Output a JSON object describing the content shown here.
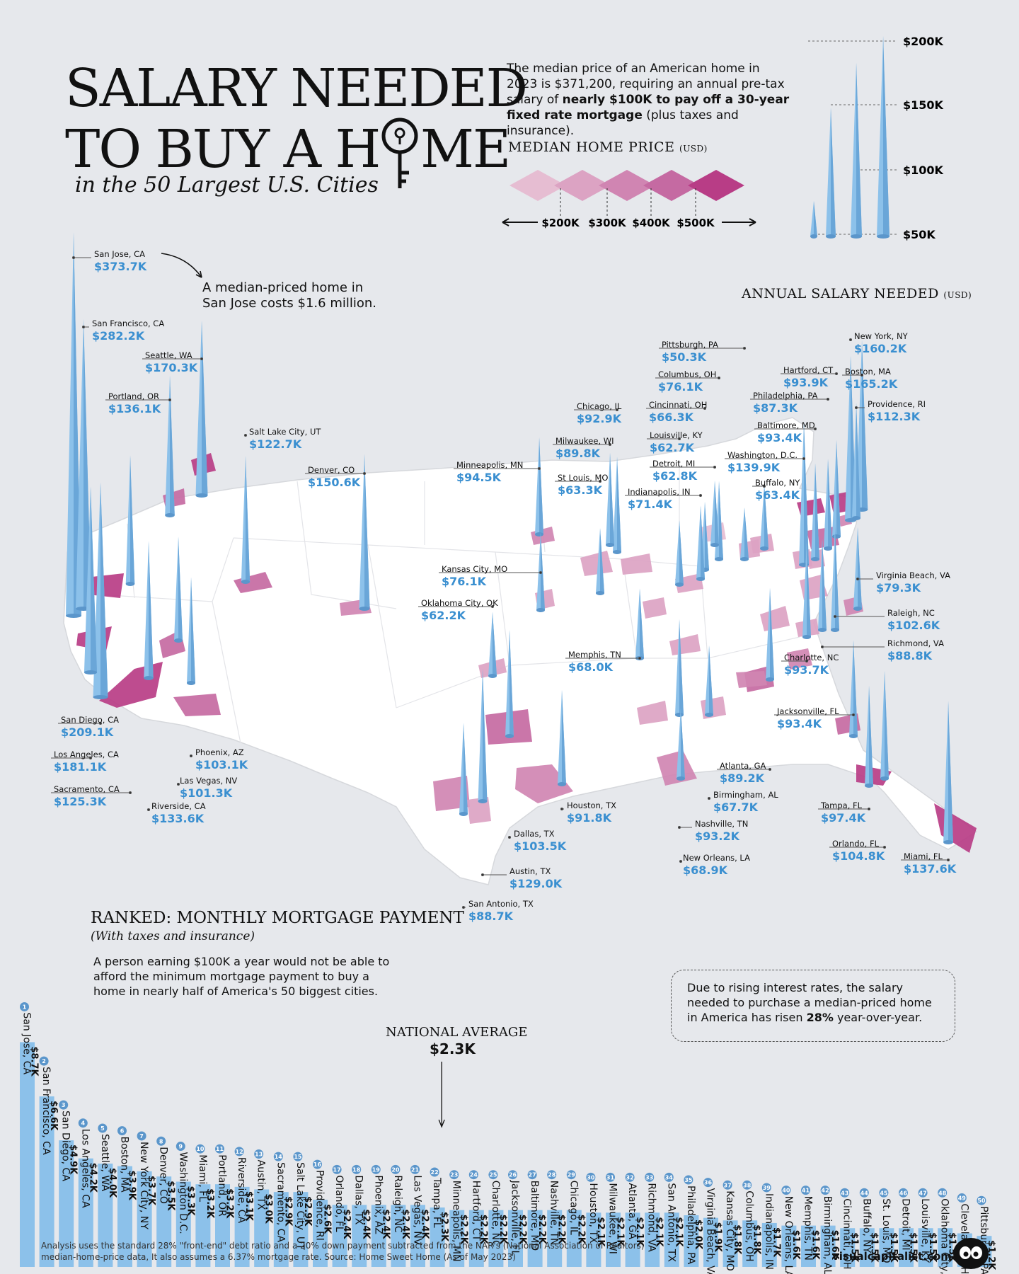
{
  "title": {
    "line1": "SALARY NEEDED",
    "line2": "TO BUY A H",
    "line2_end": "ME",
    "subtitle": "in the 50 Largest U.S. Cities"
  },
  "intro": {
    "part1": "The median price of an American home in 2023 is $371,200, requiring an annual pre-tax salary of ",
    "bold": "nearly $100K to pay off a 30-year fixed rate mortgage",
    "part2": " (plus taxes and insurance)."
  },
  "legend": {
    "price_title": "MEDIAN HOME PRICE",
    "price_unit": "(USD)",
    "price_ticks": [
      "$200K",
      "$300K",
      "$400K",
      "$500K"
    ],
    "price_colors": [
      "#e6bdd2",
      "#dca3c3",
      "#d085b2",
      "#c56aa2",
      "#b83d86"
    ],
    "salary_title": "ANNUAL SALARY NEEDED",
    "salary_unit": "(USD)",
    "salary_ticks": [
      "$200K",
      "$150K",
      "$100K",
      "$50K"
    ]
  },
  "annotation_sanjose": "A median-priced home in San Jose costs $1.6 million.",
  "map_cities": [
    {
      "name": "San Jose, CA",
      "value": "$373.7K"
    },
    {
      "name": "San Francisco, CA",
      "value": "$282.2K"
    },
    {
      "name": "Seattle, WA",
      "value": "$170.3K"
    },
    {
      "name": "Portland, OR",
      "value": "$136.1K"
    },
    {
      "name": "Salt Lake City, UT",
      "value": "$122.7K"
    },
    {
      "name": "Denver, CO",
      "value": "$150.6K"
    },
    {
      "name": "Minneapolis, MN",
      "value": "$94.5K"
    },
    {
      "name": "Chicago, IL",
      "value": "$92.9K"
    },
    {
      "name": "Milwaukee, WI",
      "value": "$89.8K"
    },
    {
      "name": "St Louis, MO",
      "value": "$63.3K"
    },
    {
      "name": "Pittsburgh, PA",
      "value": "$50.3K"
    },
    {
      "name": "Columbus, OH",
      "value": "$76.1K"
    },
    {
      "name": "Cincinnati, OH",
      "value": "$66.3K"
    },
    {
      "name": "Louisville, KY",
      "value": "$62.7K"
    },
    {
      "name": "Detroit, MI",
      "value": "$62.8K"
    },
    {
      "name": "Indianapolis, IN",
      "value": "$71.4K"
    },
    {
      "name": "New York, NY",
      "value": "$160.2K"
    },
    {
      "name": "Hartford, CT",
      "value": "$93.9K"
    },
    {
      "name": "Boston, MA",
      "value": "$165.2K"
    },
    {
      "name": "Philadelphia, PA",
      "value": "$87.3K"
    },
    {
      "name": "Providence, RI",
      "value": "$112.3K"
    },
    {
      "name": "Baltimore, MD",
      "value": "$93.4K"
    },
    {
      "name": "Washington, D.C.",
      "value": "$139.9K"
    },
    {
      "name": "Buffalo, NY",
      "value": "$63.4K"
    },
    {
      "name": "Kansas City, MO",
      "value": "$76.1K"
    },
    {
      "name": "Oklahoma City, OK",
      "value": "$62.2K"
    },
    {
      "name": "Memphis, TN",
      "value": "$68.0K"
    },
    {
      "name": "Virginia Beach, VA",
      "value": "$79.3K"
    },
    {
      "name": "Raleigh, NC",
      "value": "$102.6K"
    },
    {
      "name": "Richmond, VA",
      "value": "$88.8K"
    },
    {
      "name": "Charlotte, NC",
      "value": "$93.7K"
    },
    {
      "name": "Jacksonville, FL",
      "value": "$93.4K"
    },
    {
      "name": "Atlanta, GA",
      "value": "$89.2K"
    },
    {
      "name": "Birmingham, AL",
      "value": "$67.7K"
    },
    {
      "name": "Nashville, TN",
      "value": "$93.2K"
    },
    {
      "name": "New Orleans, LA",
      "value": "$68.9K"
    },
    {
      "name": "Tampa, FL",
      "value": "$97.4K"
    },
    {
      "name": "Orlando, FL",
      "value": "$104.8K"
    },
    {
      "name": "Miami, FL",
      "value": "$137.6K"
    },
    {
      "name": "Houston, TX",
      "value": "$91.8K"
    },
    {
      "name": "Dallas, TX",
      "value": "$103.5K"
    },
    {
      "name": "Austin, TX",
      "value": "$129.0K"
    },
    {
      "name": "San Antonio, TX",
      "value": "$88.7K"
    },
    {
      "name": "San Diego, CA",
      "value": "$209.1K"
    },
    {
      "name": "Los Angeles, CA",
      "value": "$181.1K"
    },
    {
      "name": "Sacramento, CA",
      "value": "$125.3K"
    },
    {
      "name": "Riverside, CA",
      "value": "$133.6K"
    },
    {
      "name": "Phoenix, AZ",
      "value": "$103.1K"
    },
    {
      "name": "Las Vegas, NV",
      "value": "$101.3K"
    }
  ],
  "ranked": {
    "title": "RANKED: MONTHLY MORTGAGE PAYMENT",
    "subtitle": "(With taxes and insurance)",
    "note": "A person earning $100K a year would not be able to afford the minimum mortgage payment to buy a home in nearly half of America's 50 biggest cities.",
    "national_label": "NATIONAL AVERAGE",
    "national_value": "$2.3K",
    "callout_part1": "Due to rising interest rates, the salary needed to purchase a median-priced home in America has risen ",
    "callout_bold": "28%",
    "callout_part2": " year-over-year."
  },
  "chart_data": {
    "type": "bar",
    "title": "RANKED: MONTHLY MORTGAGE PAYMENT",
    "ylabel": "",
    "categories": [
      "San Jose, CA",
      "San Francisco, CA",
      "San Diego, CA",
      "Los Angeles, CA",
      "Seattle, WA",
      "Boston, MA",
      "New York City, NY",
      "Denver, CO",
      "Washington D.C.",
      "Miami, FL",
      "Portland, OR",
      "Riverside, CA",
      "Austin, TX",
      "Sacramento, CA",
      "Salt Lake City, UT",
      "Providence, RI",
      "Orlando, FL",
      "Dallas, TX",
      "Phoenix, AZ",
      "Raleigh, NC",
      "Las Vegas, NV",
      "Tampa, FL",
      "Minneapolis, MN",
      "Hartford, CT",
      "Charlotte, NC",
      "Jacksonville, FL",
      "Baltimore, MD",
      "Nashville, TN",
      "Chicago, IL",
      "Houston, TX",
      "Milwaukee, WI",
      "Atlanta, GA",
      "Richmond, VA",
      "San Antonio, TX",
      "Philadelphia, PA",
      "Virginia Beach, VA",
      "Kansas City, MO",
      "Columbus, OH",
      "Indianapolis, IN",
      "New Orleans, LA",
      "Memphis, TN",
      "Birmingham, AL",
      "Cincinnati, OH",
      "Buffalo, NY",
      "St. Louis, MO",
      "Detroit, MI",
      "Louisville, KY",
      "Oklahoma City, OK",
      "Cleveland, OH",
      "Pittsburgh, PA"
    ],
    "values": [
      8.7,
      6.6,
      4.9,
      4.2,
      4.0,
      3.9,
      3.7,
      3.5,
      3.3,
      3.2,
      3.2,
      3.1,
      3.0,
      2.9,
      2.9,
      2.6,
      2.4,
      2.4,
      2.4,
      2.4,
      2.4,
      2.3,
      2.2,
      2.2,
      2.2,
      2.2,
      2.2,
      2.2,
      2.2,
      2.1,
      2.1,
      2.1,
      2.1,
      2.1,
      2.0,
      1.9,
      1.8,
      1.8,
      1.7,
      1.6,
      1.6,
      1.6,
      1.5,
      1.5,
      1.5,
      1.5,
      1.5,
      1.5,
      1.3,
      1.2
    ],
    "labels": [
      "$8.7K",
      "$6.6K",
      "$4.9K",
      "$4.2K",
      "$4.0K",
      "$3.9K",
      "$3.7K",
      "$3.5K",
      "$3.3K",
      "$3.2K",
      "$3.2K",
      "$3.1K",
      "$3.0K",
      "$2.9K",
      "$2.9K",
      "$2.6K",
      "$2.4K",
      "$2.4K",
      "$2.4K",
      "$2.4K",
      "$2.4K",
      "$2.3K",
      "$2.2K",
      "$2.2K",
      "$2.2K",
      "$2.2K",
      "$2.2K",
      "$2.2K",
      "$2.2K",
      "$2.1K",
      "$2.1K",
      "$2.1K",
      "$2.1K",
      "$2.1K",
      "$2.0K",
      "$1.9K",
      "$1.8K",
      "$1.8K",
      "$1.7K",
      "$1.6K",
      "$1.6K",
      "$1.6K",
      "$1.5K",
      "$1.5K",
      "$1.5K",
      "$1.5K",
      "$1.5K",
      "$1.5K",
      "$1.3K",
      "$1.2K"
    ],
    "bar_color": "#8cc1ea",
    "national_average": 2.3
  },
  "footer": {
    "source": "Analysis uses the standard 28% \"front-end\" debt ratio and a 20% down payment subtracted from the NAR's (National Association of Realtors) median-home-price data, It also assumes a 6.37% mortgage rate. Source: Home Sweet Home (As of May 2023)",
    "brand": "visualcapitalist.com"
  },
  "colors": {
    "spike": "#8cc1ea",
    "value_blue": "#3a8fd0",
    "accent_magenta": "#b83d86",
    "background": "#e6e8ec"
  }
}
